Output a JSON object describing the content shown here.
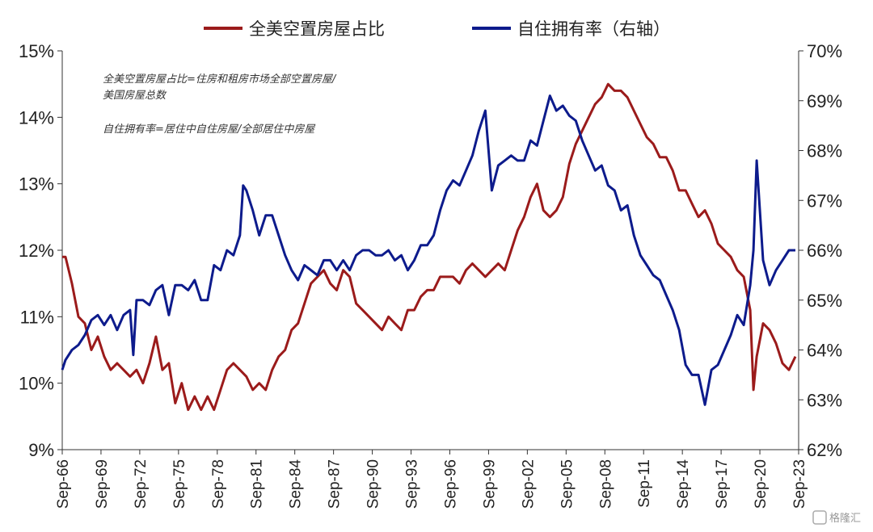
{
  "chart_data": {
    "type": "line",
    "title": "",
    "legend": {
      "placement": "top",
      "entries": [
        "全美空置房屋占比",
        "自住拥有率（右轴）"
      ]
    },
    "annotations": [
      "全美空置房屋占比=住房和租房市场全部空置房屋/",
      "美国房屋总数",
      "自住拥有率=居住中自住房屋/全部居住中房屋"
    ],
    "x_ticks": [
      "Sep-66",
      "Sep-69",
      "Sep-72",
      "Sep-75",
      "Sep-78",
      "Sep-81",
      "Sep-84",
      "Sep-87",
      "Sep-90",
      "Sep-93",
      "Sep-96",
      "Sep-99",
      "Sep-02",
      "Sep-05",
      "Sep-08",
      "Sep-11",
      "Sep-14",
      "Sep-17",
      "Sep-20",
      "Sep-23"
    ],
    "y_left": {
      "ticks": [
        "9%",
        "10%",
        "11%",
        "12%",
        "13%",
        "14%",
        "15%"
      ],
      "ylim": [
        9,
        15
      ]
    },
    "y_right": {
      "ticks": [
        "62%",
        "63%",
        "64%",
        "65%",
        "66%",
        "67%",
        "68%",
        "69%",
        "70%"
      ],
      "ylim": [
        62,
        70
      ]
    },
    "grid": false,
    "series": [
      {
        "name": "全美空置房屋占比",
        "axis": "left",
        "color": "#9b1b1b",
        "x": [
          1966.75,
          1967.0,
          1967.5,
          1968.0,
          1968.5,
          1969.0,
          1969.5,
          1970.0,
          1970.5,
          1971.0,
          1971.5,
          1972.0,
          1972.5,
          1973.0,
          1973.5,
          1974.0,
          1974.5,
          1975.0,
          1975.5,
          1976.0,
          1976.5,
          1977.0,
          1977.5,
          1978.0,
          1978.5,
          1979.0,
          1979.5,
          1980.0,
          1980.5,
          1981.0,
          1981.5,
          1982.0,
          1982.5,
          1983.0,
          1983.5,
          1984.0,
          1984.5,
          1985.0,
          1985.5,
          1986.0,
          1986.5,
          1987.0,
          1987.5,
          1988.0,
          1988.5,
          1989.0,
          1989.5,
          1990.0,
          1990.5,
          1991.0,
          1991.5,
          1992.0,
          1992.5,
          1993.0,
          1993.5,
          1994.0,
          1994.5,
          1995.0,
          1995.5,
          1996.0,
          1996.5,
          1997.0,
          1997.5,
          1998.0,
          1998.5,
          1999.0,
          1999.5,
          2000.0,
          2000.5,
          2001.0,
          2001.5,
          2002.0,
          2002.5,
          2003.0,
          2003.5,
          2004.0,
          2004.5,
          2005.0,
          2005.5,
          2006.0,
          2006.5,
          2007.0,
          2007.5,
          2008.0,
          2008.5,
          2009.0,
          2009.5,
          2010.0,
          2010.5,
          2011.0,
          2011.5,
          2012.0,
          2012.5,
          2013.0,
          2013.5,
          2014.0,
          2014.5,
          2015.0,
          2015.5,
          2016.0,
          2016.5,
          2017.0,
          2017.5,
          2018.0,
          2018.5,
          2019.0,
          2019.5,
          2020.0,
          2020.25,
          2020.5,
          2021.0,
          2021.5,
          2022.0,
          2022.5,
          2023.0,
          2023.25,
          2023.5
        ],
        "values": [
          11.9,
          11.9,
          11.5,
          11.0,
          10.9,
          10.5,
          10.7,
          10.4,
          10.2,
          10.3,
          10.2,
          10.1,
          10.2,
          10.0,
          10.3,
          10.7,
          10.2,
          10.3,
          9.7,
          10.0,
          9.6,
          9.8,
          9.6,
          9.8,
          9.6,
          9.9,
          10.2,
          10.3,
          10.2,
          10.1,
          9.9,
          10.0,
          9.9,
          10.2,
          10.4,
          10.5,
          10.8,
          10.9,
          11.2,
          11.5,
          11.6,
          11.7,
          11.5,
          11.4,
          11.7,
          11.6,
          11.2,
          11.1,
          11.0,
          10.9,
          10.8,
          11.0,
          10.9,
          10.8,
          11.1,
          11.1,
          11.3,
          11.4,
          11.4,
          11.6,
          11.6,
          11.6,
          11.5,
          11.7,
          11.8,
          11.7,
          11.6,
          11.7,
          11.8,
          11.7,
          12.0,
          12.3,
          12.5,
          12.8,
          13.0,
          12.6,
          12.5,
          12.6,
          12.8,
          13.3,
          13.6,
          13.8,
          14.0,
          14.2,
          14.3,
          14.5,
          14.4,
          14.4,
          14.3,
          14.1,
          13.9,
          13.7,
          13.6,
          13.4,
          13.4,
          13.2,
          12.9,
          12.9,
          12.7,
          12.5,
          12.6,
          12.4,
          12.1,
          12.0,
          11.9,
          11.7,
          11.6,
          11.1,
          9.9,
          10.4,
          10.9,
          10.8,
          10.6,
          10.3,
          10.2,
          10.3,
          10.4
        ]
      },
      {
        "name": "自住拥有率（右轴）",
        "axis": "right",
        "color": "#0d1b8c",
        "x": [
          1966.75,
          1967.0,
          1967.5,
          1968.0,
          1968.5,
          1969.0,
          1969.5,
          1970.0,
          1970.5,
          1971.0,
          1971.5,
          1972.0,
          1972.25,
          1972.5,
          1973.0,
          1973.5,
          1974.0,
          1974.5,
          1975.0,
          1975.5,
          1976.0,
          1976.5,
          1977.0,
          1977.5,
          1978.0,
          1978.5,
          1979.0,
          1979.5,
          1980.0,
          1980.5,
          1980.75,
          1981.0,
          1981.5,
          1982.0,
          1982.5,
          1983.0,
          1983.5,
          1984.0,
          1984.5,
          1985.0,
          1985.5,
          1986.0,
          1986.5,
          1987.0,
          1987.5,
          1988.0,
          1988.5,
          1989.0,
          1989.5,
          1990.0,
          1990.5,
          1991.0,
          1991.5,
          1992.0,
          1992.5,
          1993.0,
          1993.5,
          1994.0,
          1994.5,
          1995.0,
          1995.5,
          1996.0,
          1996.5,
          1997.0,
          1997.5,
          1998.0,
          1998.5,
          1999.0,
          1999.5,
          2000.0,
          2000.5,
          2001.0,
          2001.5,
          2002.0,
          2002.5,
          2003.0,
          2003.5,
          2004.0,
          2004.5,
          2005.0,
          2005.5,
          2006.0,
          2006.5,
          2007.0,
          2007.5,
          2008.0,
          2008.5,
          2009.0,
          2009.5,
          2010.0,
          2010.5,
          2011.0,
          2011.5,
          2012.0,
          2012.5,
          2013.0,
          2013.5,
          2014.0,
          2014.5,
          2015.0,
          2015.5,
          2016.0,
          2016.5,
          2017.0,
          2017.5,
          2018.0,
          2018.5,
          2019.0,
          2019.5,
          2020.0,
          2020.25,
          2020.5,
          2021.0,
          2021.5,
          2022.0,
          2022.5,
          2023.0,
          2023.5
        ],
        "values": [
          63.6,
          63.8,
          64.0,
          64.1,
          64.3,
          64.6,
          64.7,
          64.5,
          64.7,
          64.4,
          64.7,
          64.8,
          63.9,
          65.0,
          65.0,
          64.9,
          65.2,
          65.3,
          64.7,
          65.3,
          65.3,
          65.2,
          65.4,
          65.0,
          65.0,
          65.7,
          65.6,
          66.0,
          65.9,
          66.3,
          67.3,
          67.2,
          66.8,
          66.3,
          66.7,
          66.7,
          66.3,
          65.9,
          65.6,
          65.4,
          65.7,
          65.6,
          65.5,
          65.8,
          65.8,
          65.6,
          65.8,
          65.6,
          65.9,
          66.0,
          66.0,
          65.9,
          65.9,
          66.0,
          65.8,
          65.9,
          65.6,
          65.8,
          66.1,
          66.1,
          66.3,
          66.8,
          67.2,
          67.4,
          67.3,
          67.6,
          67.9,
          68.4,
          68.8,
          67.2,
          67.7,
          67.8,
          67.9,
          67.8,
          67.8,
          68.2,
          68.1,
          68.6,
          69.1,
          68.8,
          68.9,
          68.7,
          68.6,
          68.2,
          67.9,
          67.6,
          67.7,
          67.3,
          67.2,
          66.8,
          66.9,
          66.3,
          65.9,
          65.7,
          65.5,
          65.4,
          65.1,
          64.8,
          64.4,
          63.7,
          63.5,
          63.5,
          62.9,
          63.6,
          63.7,
          64.0,
          64.3,
          64.7,
          64.5,
          65.3,
          66.0,
          67.8,
          65.8,
          65.3,
          65.6,
          65.8,
          66.0,
          66.0
        ]
      }
    ]
  },
  "watermark": "格隆汇"
}
